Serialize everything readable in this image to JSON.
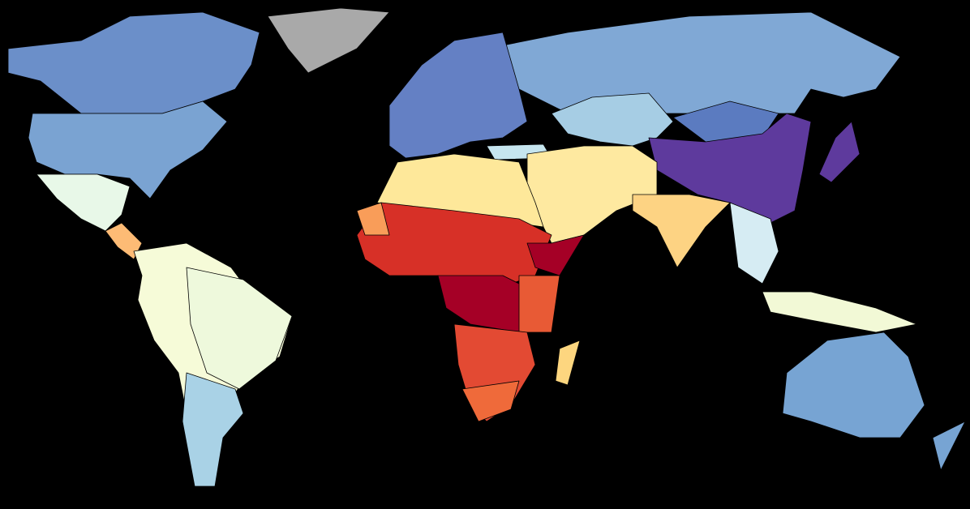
{
  "map": {
    "background": "#000000",
    "regions": [
      {
        "color": "#6b8fc9"
      },
      {
        "color": "#7aa3d2"
      },
      {
        "color": "#a9a9a9"
      },
      {
        "color": "#e8f8e8"
      },
      {
        "color": "#fdbb75"
      },
      {
        "color": "#f6fbd8"
      },
      {
        "color": "#eef9dc"
      },
      {
        "color": "#a9d2e6"
      },
      {
        "color": "#80a8d5"
      },
      {
        "color": "#6480c4"
      },
      {
        "color": "#a6cde4"
      },
      {
        "color": "#c6e5ef"
      },
      {
        "color": "#5b7bc0"
      },
      {
        "color": "#5e3a9d"
      },
      {
        "color": "#fee9a0"
      },
      {
        "color": "#fdd383"
      },
      {
        "color": "#d6ecf3"
      },
      {
        "color": "#f2f9d6"
      },
      {
        "color": "#5e3a9d"
      },
      {
        "color": "#77a4d3"
      },
      {
        "color": "#77a4d3"
      },
      {
        "color": "#fee89a"
      },
      {
        "color": "#d73027"
      },
      {
        "color": "#a50026"
      },
      {
        "color": "#a50026"
      },
      {
        "color": "#e85a35"
      },
      {
        "color": "#e34a33"
      },
      {
        "color": "#ef6a3a"
      },
      {
        "color": "#fdd67f"
      },
      {
        "color": "#f99d59"
      }
    ]
  }
}
